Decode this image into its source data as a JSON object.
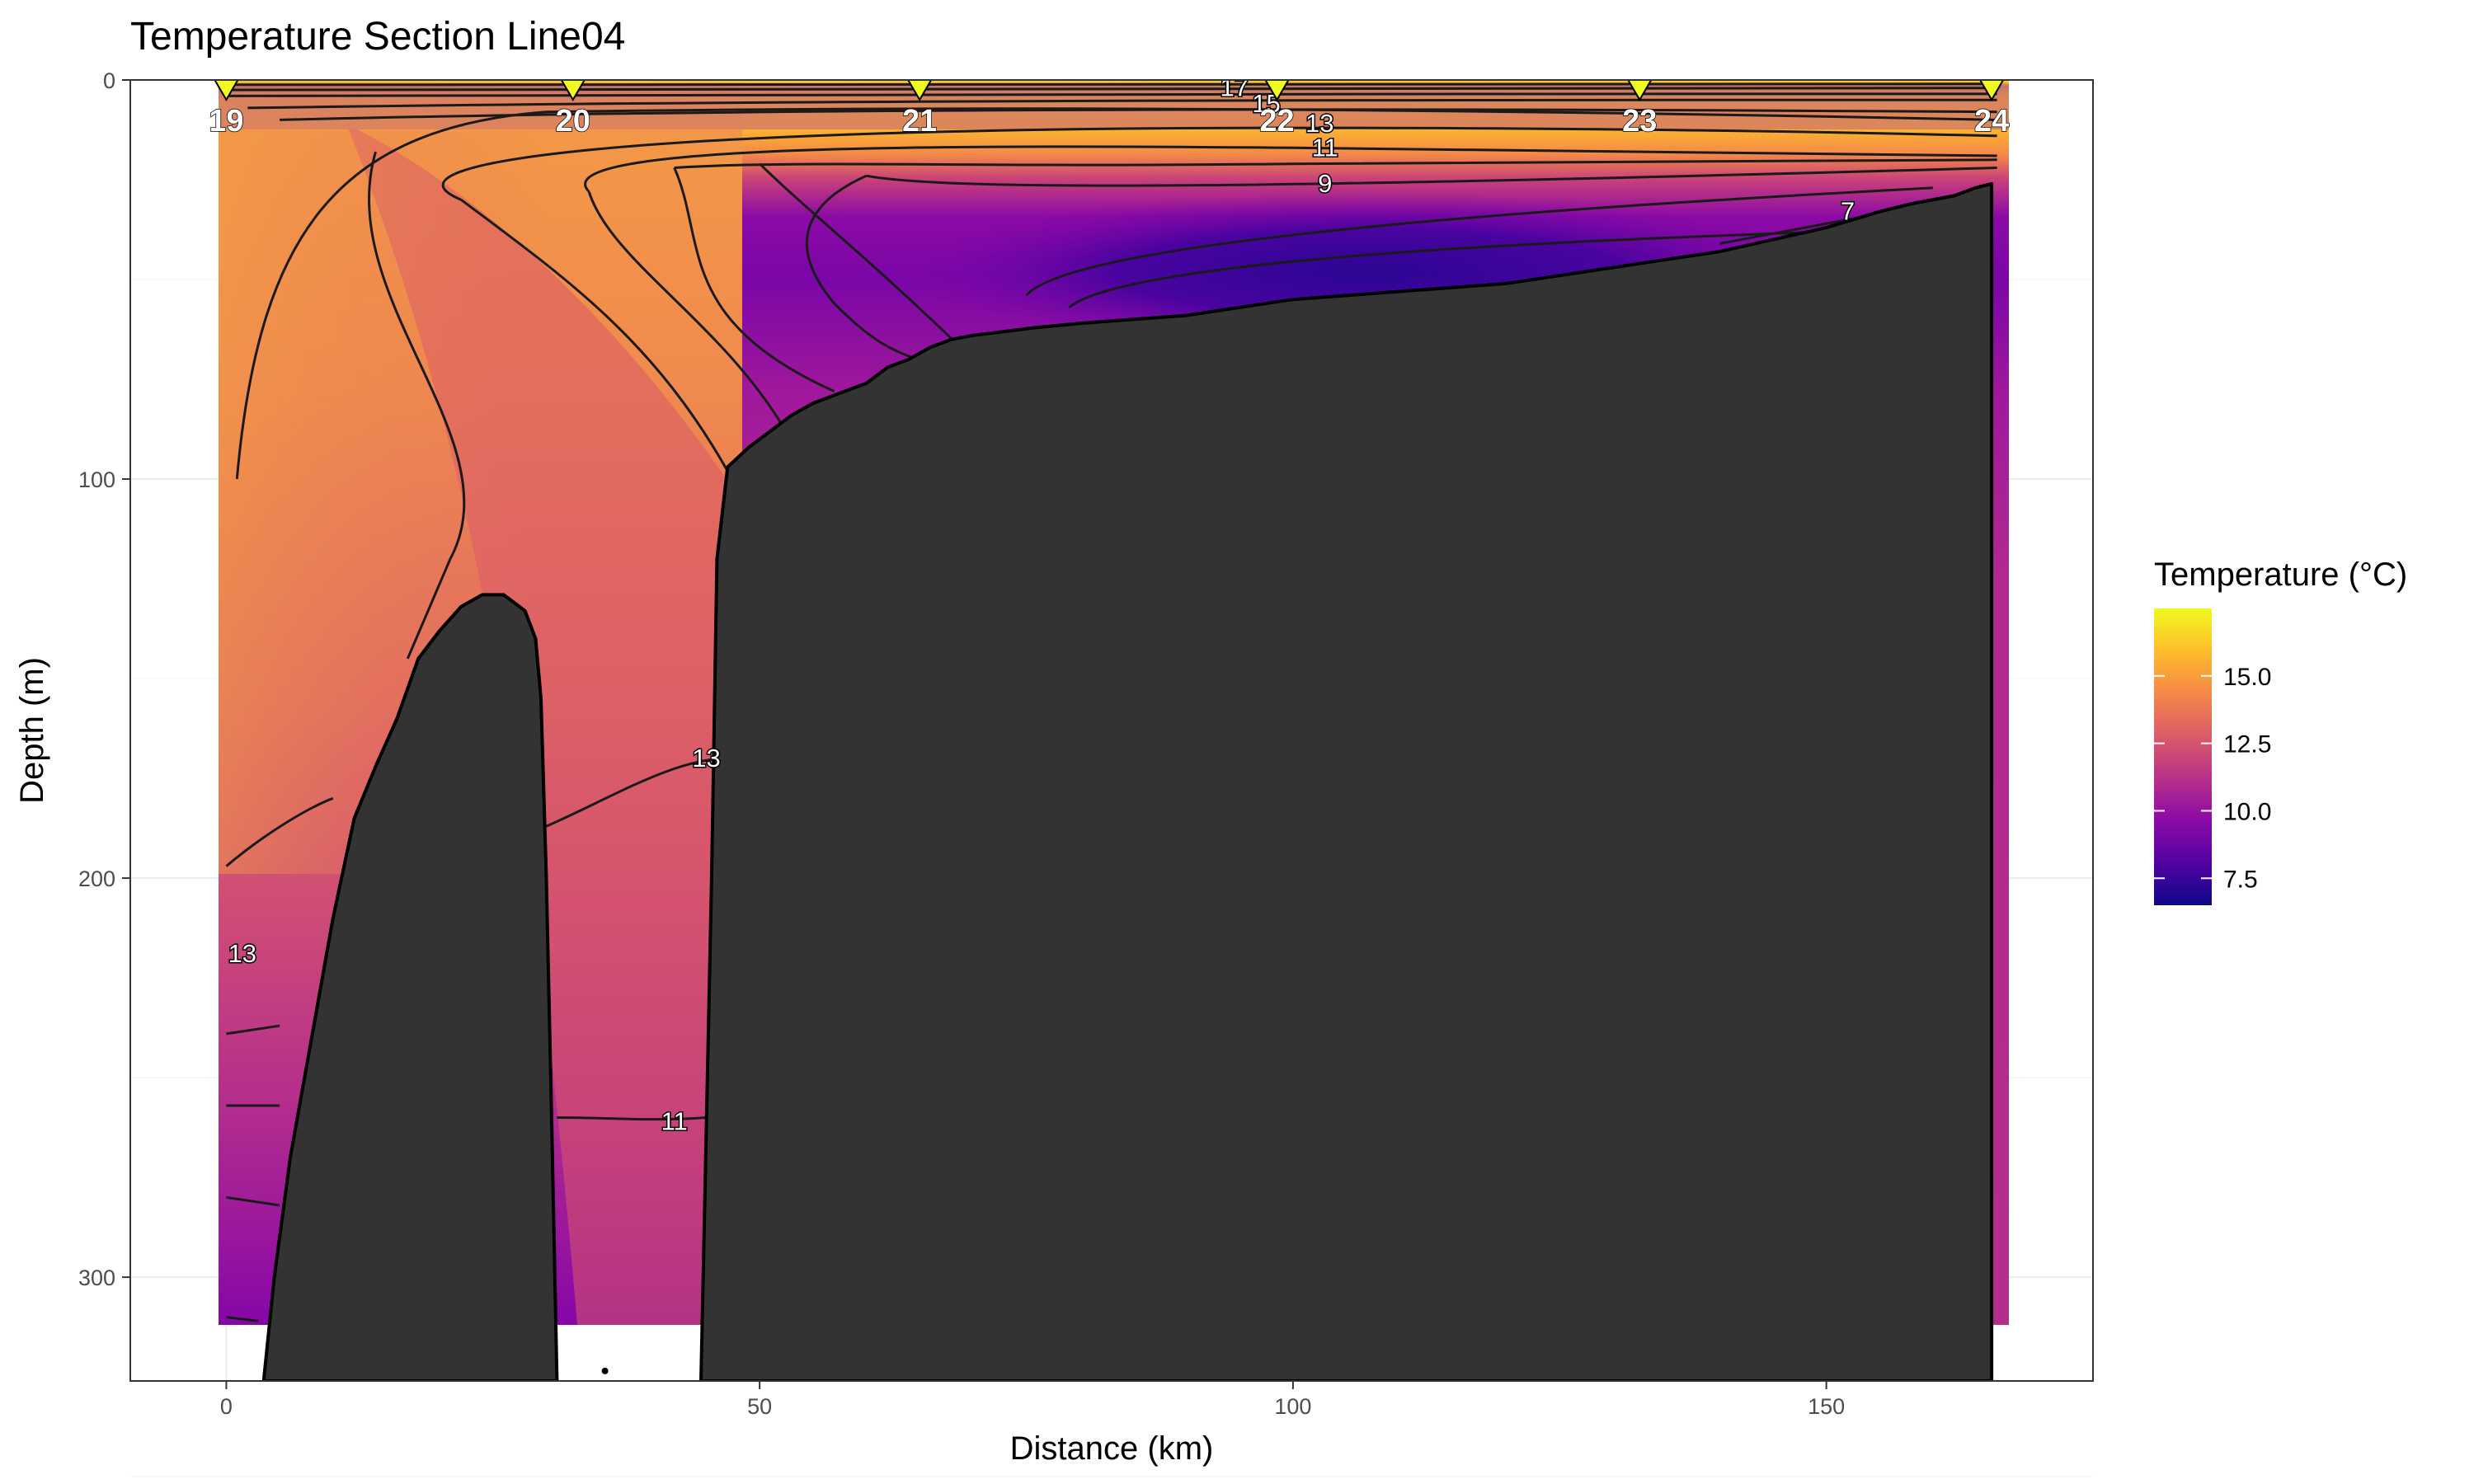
{
  "chart_data": {
    "type": "heatmap",
    "title": "Temperature Section Line04",
    "xlabel": "Distance (km)",
    "ylabel": "Depth (m)",
    "xlim": [
      -9,
      175
    ],
    "ylim": [
      0,
      326
    ],
    "y_reversed": true,
    "x_ticks": [
      0,
      50,
      100,
      150
    ],
    "y_ticks": [
      0,
      100,
      200,
      300
    ],
    "grid": true,
    "legend": {
      "title": "Temperature (°C)",
      "placement": "right",
      "ticks": [
        {
          "value": 15.0,
          "label": "15.0"
        },
        {
          "value": 12.5,
          "label": "12.5"
        },
        {
          "value": 10.0,
          "label": "10.0"
        },
        {
          "value": 7.5,
          "label": "7.5"
        }
      ],
      "range": [
        6.5,
        17.5
      ],
      "colors": [
        "#0d0887",
        "#5302a3",
        "#8b0aa5",
        "#b83289",
        "#db5c68",
        "#f48849",
        "#febd2a",
        "#f0f921"
      ]
    },
    "stations": [
      {
        "label": "19",
        "x": 0
      },
      {
        "label": "20",
        "x": 32.5
      },
      {
        "label": "21",
        "x": 65
      },
      {
        "label": "22",
        "x": 98.5
      },
      {
        "label": "23",
        "x": 132.5
      },
      {
        "label": "24",
        "x": 165.5
      }
    ],
    "contour_labels": [
      {
        "text": "17",
        "x": 94.5,
        "y": 2
      },
      {
        "text": "15",
        "x": 97.5,
        "y": 6
      },
      {
        "text": "13",
        "x": 102.5,
        "y": 11
      },
      {
        "text": "11",
        "x": 103,
        "y": 17
      },
      {
        "text": "9",
        "x": 103,
        "y": 26
      },
      {
        "text": "7",
        "x": 152,
        "y": 33
      },
      {
        "text": "13",
        "x": 45,
        "y": 170
      },
      {
        "text": "13",
        "x": 1.5,
        "y": 219
      },
      {
        "text": "11",
        "x": 42,
        "y": 261
      }
    ],
    "bathymetry": [
      {
        "name": "western ridge",
        "points": [
          [
            3.5,
            326
          ],
          [
            4.5,
            300
          ],
          [
            6,
            270
          ],
          [
            8,
            240
          ],
          [
            10,
            210
          ],
          [
            12,
            185
          ],
          [
            14,
            172
          ],
          [
            16,
            160
          ],
          [
            18,
            145
          ],
          [
            20,
            138
          ],
          [
            22,
            132
          ],
          [
            24,
            129
          ],
          [
            26,
            129
          ],
          [
            28,
            133
          ],
          [
            29,
            140
          ],
          [
            29.5,
            155
          ],
          [
            30,
            200
          ],
          [
            30.5,
            260
          ],
          [
            31,
            326
          ]
        ]
      },
      {
        "name": "eastern slope",
        "points": [
          [
            44.5,
            326
          ],
          [
            45.5,
            200
          ],
          [
            46,
            120
          ],
          [
            47,
            97
          ],
          [
            49,
            92
          ],
          [
            51,
            88
          ],
          [
            53,
            84
          ],
          [
            55,
            81
          ],
          [
            57,
            79
          ],
          [
            60,
            76
          ],
          [
            62,
            72
          ],
          [
            64,
            70
          ],
          [
            66,
            67
          ],
          [
            68,
            65
          ],
          [
            70,
            64
          ],
          [
            73,
            63
          ],
          [
            76,
            62
          ],
          [
            80,
            61
          ],
          [
            85,
            60
          ],
          [
            90,
            59
          ],
          [
            95,
            57
          ],
          [
            100,
            55
          ],
          [
            105,
            54
          ],
          [
            110,
            53
          ],
          [
            115,
            52
          ],
          [
            120,
            51
          ],
          [
            125,
            49
          ],
          [
            130,
            47
          ],
          [
            135,
            45
          ],
          [
            140,
            43
          ],
          [
            145,
            40
          ],
          [
            150,
            37
          ],
          [
            155,
            33
          ],
          [
            158,
            31
          ],
          [
            162,
            29
          ],
          [
            164,
            27
          ],
          [
            165.5,
            26
          ],
          [
            165.5,
            326
          ]
        ]
      }
    ]
  }
}
